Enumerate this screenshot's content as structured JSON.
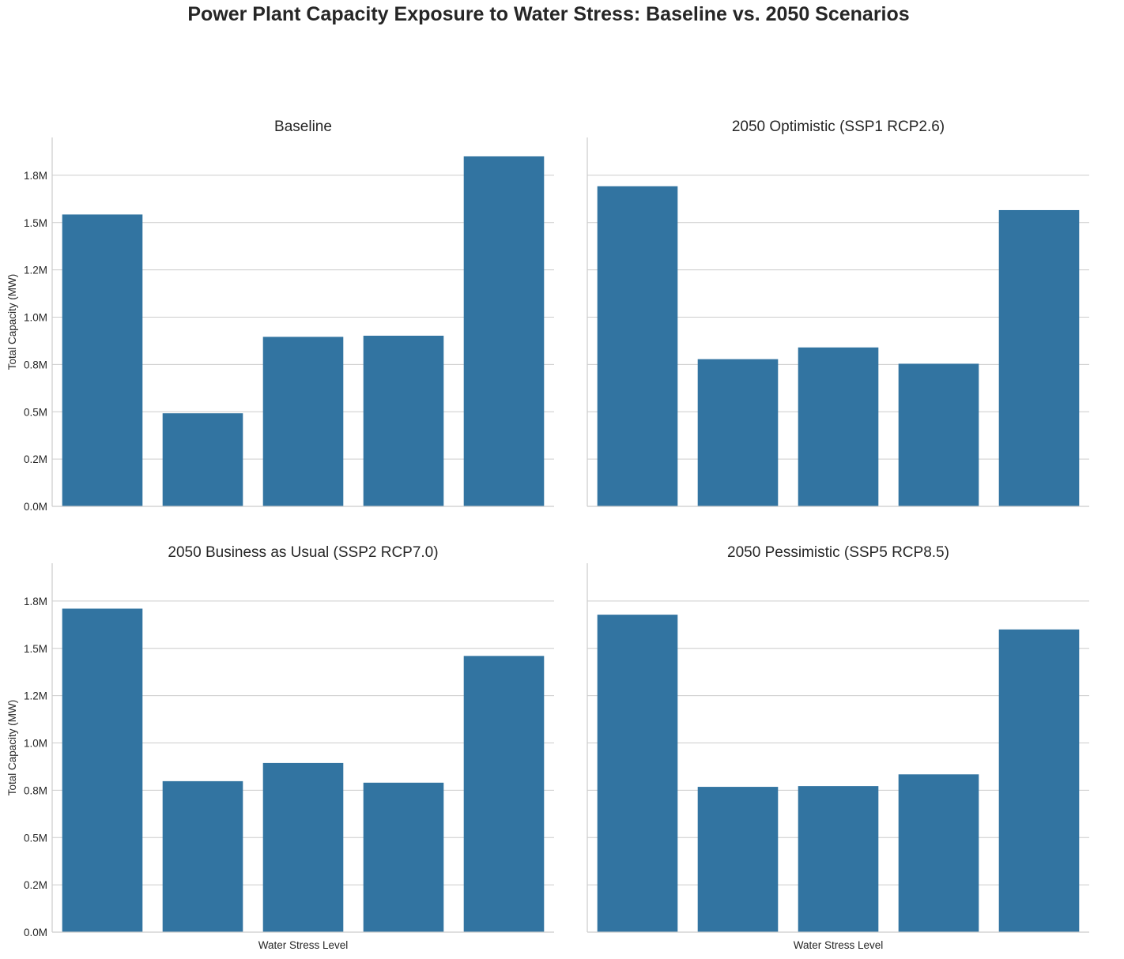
{
  "title": "Power Plant Capacity Exposure to Water Stress: Baseline vs. 2050 Scenarios",
  "colors": {
    "bar": "#3274a1",
    "grid": "#cccccc",
    "axis": "#cccccc",
    "text": "#262626"
  },
  "chart_data": [
    {
      "type": "bar",
      "title": "Baseline",
      "xlabel": "",
      "ylabel": "Total Capacity (MW)",
      "categories": [
        "",
        "",
        "",
        "",
        ""
      ],
      "values": [
        1543000,
        492000,
        896000,
        902000,
        1850000
      ],
      "ylim": [
        0,
        1950000
      ],
      "yticks": [
        0,
        250000,
        500000,
        750000,
        1000000,
        1250000,
        1500000,
        1750000
      ],
      "ytick_labels": [
        "0.0M",
        "0.2M",
        "0.5M",
        "0.8M",
        "1.0M",
        "1.2M",
        "1.5M",
        "1.8M"
      ],
      "grid": true
    },
    {
      "type": "bar",
      "title": "2050 Optimistic (SSP1 RCP2.6)",
      "xlabel": "",
      "ylabel": "",
      "categories": [
        "",
        "",
        "",
        "",
        ""
      ],
      "values": [
        1692000,
        778000,
        840000,
        754000,
        1566000
      ],
      "ylim": [
        0,
        1950000
      ],
      "yticks": [
        0,
        250000,
        500000,
        750000,
        1000000,
        1250000,
        1500000,
        1750000
      ],
      "ytick_labels": [
        "",
        "",
        "",
        "",
        "",
        "",
        "",
        ""
      ],
      "grid": true
    },
    {
      "type": "bar",
      "title": "2050 Business as Usual (SSP2 RCP7.0)",
      "xlabel": "Water Stress Level",
      "ylabel": "Total Capacity (MW)",
      "categories": [
        "",
        "",
        "",
        "",
        ""
      ],
      "values": [
        1710000,
        798000,
        894000,
        790000,
        1460000
      ],
      "ylim": [
        0,
        1950000
      ],
      "yticks": [
        0,
        250000,
        500000,
        750000,
        1000000,
        1250000,
        1500000,
        1750000
      ],
      "ytick_labels": [
        "0.0M",
        "0.2M",
        "0.5M",
        "0.8M",
        "1.0M",
        "1.2M",
        "1.5M",
        "1.8M"
      ],
      "grid": true
    },
    {
      "type": "bar",
      "title": "2050 Pessimistic (SSP5 RCP8.5)",
      "xlabel": "Water Stress Level",
      "ylabel": "",
      "categories": [
        "",
        "",
        "",
        "",
        ""
      ],
      "values": [
        1678000,
        768000,
        772000,
        834000,
        1600000
      ],
      "ylim": [
        0,
        1950000
      ],
      "yticks": [
        0,
        250000,
        500000,
        750000,
        1000000,
        1250000,
        1500000,
        1750000
      ],
      "ytick_labels": [
        "",
        "",
        "",
        "",
        "",
        "",
        "",
        ""
      ],
      "grid": true
    }
  ]
}
